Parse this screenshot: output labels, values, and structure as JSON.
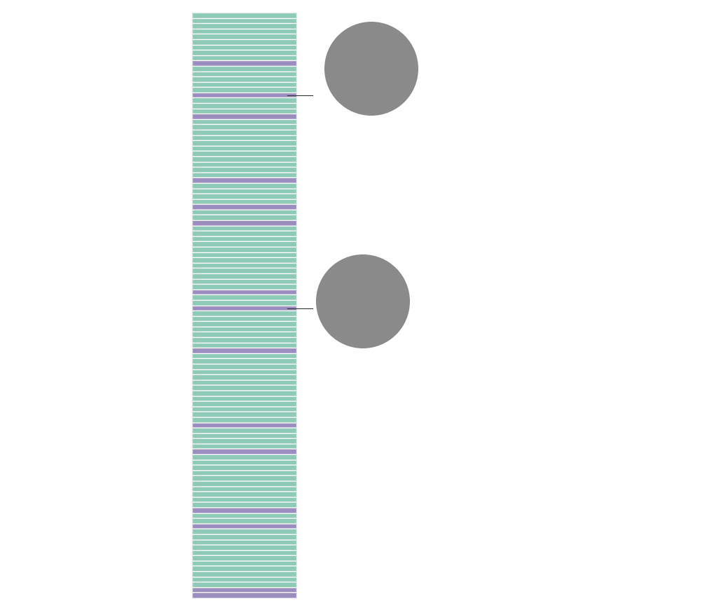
{
  "chart_data": {
    "type": "bar",
    "orientation": "horizontal",
    "stacked": true,
    "tick_labels": false,
    "xlim": [
      0,
      1
    ],
    "ylim": [
      0,
      110
    ],
    "values": [
      1,
      1,
      1,
      1,
      1,
      1,
      1,
      1,
      1,
      1,
      1,
      1,
      1,
      1,
      1,
      1,
      1,
      1,
      1,
      1,
      1,
      1,
      1,
      1,
      1,
      1,
      1,
      1,
      1,
      1,
      1,
      1,
      1,
      1,
      1,
      1,
      1,
      1,
      1,
      1,
      1,
      1,
      1,
      1,
      1,
      1,
      1,
      1,
      1,
      1,
      1,
      1,
      1,
      1,
      1,
      1,
      1,
      1,
      1,
      1,
      1,
      1,
      1,
      1,
      1,
      1,
      1,
      1,
      1,
      1,
      1,
      1,
      1,
      1,
      1,
      1,
      1,
      1,
      1,
      1,
      1,
      1,
      1,
      1,
      1,
      1,
      1,
      1,
      1,
      1,
      1,
      1,
      1,
      1,
      1,
      1,
      1,
      1,
      1,
      1,
      1,
      1,
      1,
      1,
      1,
      1,
      1,
      1,
      1,
      1
    ],
    "colors": [
      "#8ecab8",
      "#8ecab8",
      "#8ecab8",
      "#8ecab8",
      "#8ecab8",
      "#8ecab8",
      "#8ecab8",
      "#8ecab8",
      "#8ecab8",
      "#9c8dc0",
      "#8ecab8",
      "#8ecab8",
      "#8ecab8",
      "#8ecab8",
      "#8ecab8",
      "#9c8dc0",
      "#8ecab8",
      "#8ecab8",
      "#8ecab8",
      "#9c8dc0",
      "#8ecab8",
      "#8ecab8",
      "#8ecab8",
      "#8ecab8",
      "#8ecab8",
      "#8ecab8",
      "#8ecab8",
      "#8ecab8",
      "#8ecab8",
      "#8ecab8",
      "#8ecab8",
      "#9c8dc0",
      "#8ecab8",
      "#8ecab8",
      "#8ecab8",
      "#8ecab8",
      "#9c8dc0",
      "#8ecab8",
      "#8ecab8",
      "#9c8dc0",
      "#8ecab8",
      "#8ecab8",
      "#8ecab8",
      "#8ecab8",
      "#8ecab8",
      "#8ecab8",
      "#8ecab8",
      "#8ecab8",
      "#8ecab8",
      "#8ecab8",
      "#8ecab8",
      "#8ecab8",
      "#9c8dc0",
      "#8ecab8",
      "#8ecab8",
      "#9c8dc0",
      "#8ecab8",
      "#8ecab8",
      "#8ecab8",
      "#8ecab8",
      "#8ecab8",
      "#8ecab8",
      "#8ecab8",
      "#9c8dc0",
      "#8ecab8",
      "#8ecab8",
      "#8ecab8",
      "#8ecab8",
      "#8ecab8",
      "#8ecab8",
      "#8ecab8",
      "#8ecab8",
      "#8ecab8",
      "#8ecab8",
      "#8ecab8",
      "#8ecab8",
      "#8ecab8",
      "#9c8dc0",
      "#8ecab8",
      "#8ecab8",
      "#8ecab8",
      "#8ecab8",
      "#9c8dc0",
      "#8ecab8",
      "#8ecab8",
      "#8ecab8",
      "#8ecab8",
      "#8ecab8",
      "#8ecab8",
      "#8ecab8",
      "#8ecab8",
      "#8ecab8",
      "#8ecab8",
      "#9c8dc0",
      "#8ecab8",
      "#8ecab8",
      "#9c8dc0",
      "#8ecab8",
      "#8ecab8",
      "#8ecab8",
      "#8ecab8",
      "#8ecab8",
      "#8ecab8",
      "#8ecab8",
      "#8ecab8",
      "#8ecab8",
      "#8ecab8",
      "#8ecab8",
      "#9c8dc0",
      "#9c8dc0"
    ]
  }
}
